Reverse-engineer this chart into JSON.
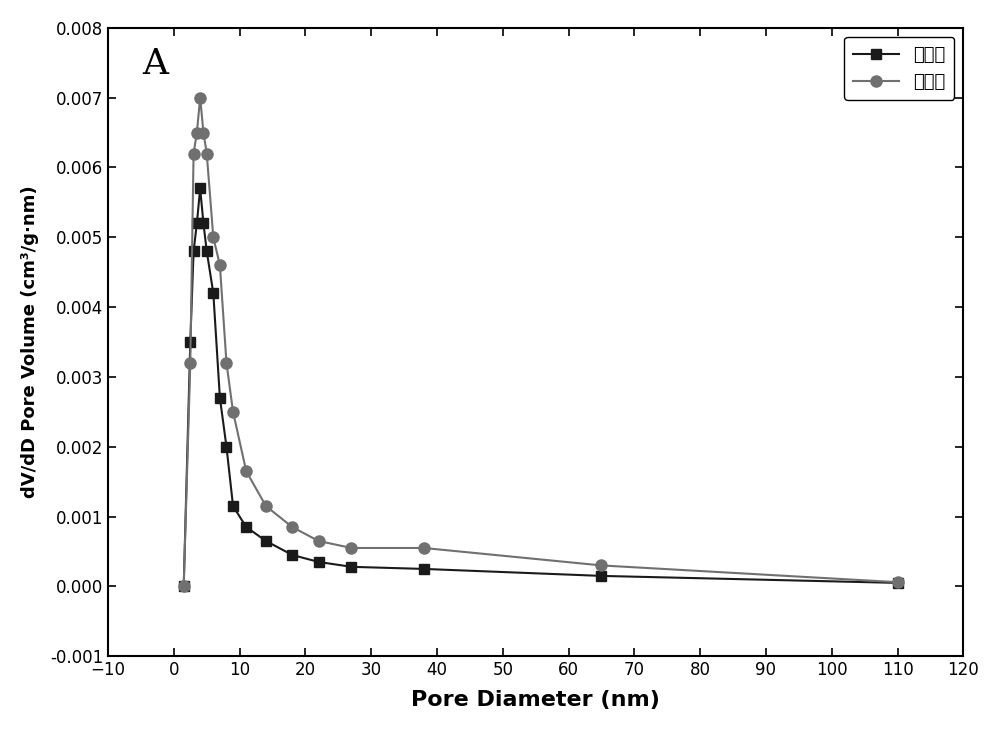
{
  "series1_label": "刻蚀前",
  "series2_label": "刻蚀后",
  "series1_color": "#1a1a1a",
  "series2_color": "#707070",
  "series1_x": [
    1.5,
    2.5,
    3.0,
    3.5,
    4.0,
    4.5,
    5.0,
    6.0,
    7.0,
    8.0,
    9.0,
    11.0,
    14.0,
    18.0,
    22.0,
    27.0,
    38.0,
    65.0,
    110.0
  ],
  "series1_y": [
    0.0,
    0.0035,
    0.0048,
    0.0052,
    0.0057,
    0.0052,
    0.0048,
    0.0042,
    0.0027,
    0.002,
    0.00115,
    0.00085,
    0.00065,
    0.00045,
    0.00035,
    0.00028,
    0.00025,
    0.00015,
    5e-05
  ],
  "series2_x": [
    1.5,
    2.5,
    3.0,
    3.5,
    4.0,
    4.5,
    5.0,
    6.0,
    7.0,
    8.0,
    9.0,
    11.0,
    14.0,
    18.0,
    22.0,
    27.0,
    38.0,
    65.0,
    110.0
  ],
  "series2_y": [
    0.0,
    0.0032,
    0.0062,
    0.0065,
    0.007,
    0.0065,
    0.0062,
    0.005,
    0.0046,
    0.0032,
    0.0025,
    0.00165,
    0.00115,
    0.00085,
    0.00065,
    0.00055,
    0.00055,
    0.0003,
    6e-05
  ],
  "xlabel": "Pore Diameter (nm)",
  "ylabel": "dV/dD Pore Volume (cm³/g·nm)",
  "panel_label": "A",
  "xlim": [
    -10,
    120
  ],
  "ylim": [
    -0.001,
    0.008
  ],
  "xticks": [
    -10,
    0,
    10,
    20,
    30,
    40,
    50,
    60,
    70,
    80,
    90,
    100,
    110,
    120
  ],
  "yticks": [
    -0.001,
    0.0,
    0.001,
    0.002,
    0.003,
    0.004,
    0.005,
    0.006,
    0.007,
    0.008
  ],
  "background_color": "#ffffff",
  "legend_loc": "upper right"
}
